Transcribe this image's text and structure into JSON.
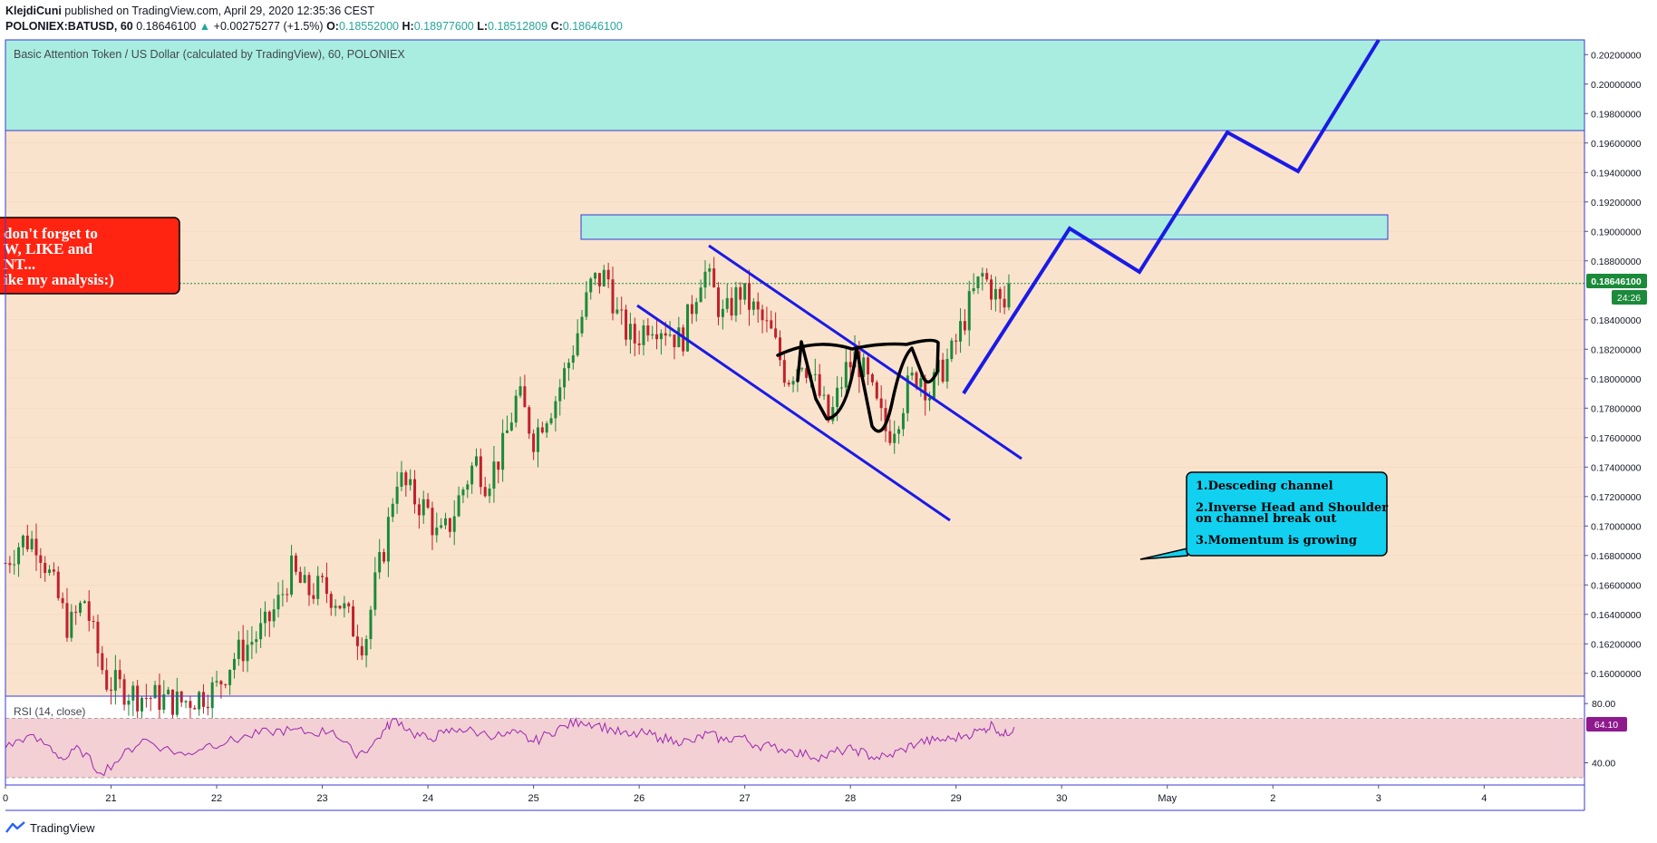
{
  "header": {
    "author": "KlejdiCuni",
    "published_text": "published on TradingView.com, April 29, 2020 12:35:36 CEST",
    "symbol": "POLONIEX:BATUSD, 60",
    "last": "0.18646100",
    "change_arrow": "▲",
    "change": "+0.00275277 (+1.5%)",
    "o_label": "O:",
    "o": "0.18552000",
    "h_label": "H:",
    "h": "0.18977600",
    "l_label": "L:",
    "l": "0.18512809",
    "c_label": "C:",
    "c": "0.18646100"
  },
  "footer": {
    "brand": "TradingView",
    "logo_icon": "tradingview-logo-icon"
  },
  "colors": {
    "chart_bg": "#fae3cc",
    "zone": "#a8ede0",
    "zone_border": "#3a3ad8",
    "up": "#1b8a3a",
    "down": "#c0212c",
    "drawing": "#1a1ae6",
    "rsi_line": "#9c27b0",
    "rsi_band": "#f2d0d4",
    "price_badge": "#1b8a3a",
    "rsi_badge": "#8e1a8e",
    "callout_red": "#ff2412",
    "callout_cyan": "#12d0f0"
  },
  "chart_data": [
    {
      "type": "candlestick",
      "title": "Basic Attention Token / US Dollar (calculated by TradingView), 60, POLONIEX",
      "x_labels": [
        "0",
        "21",
        "22",
        "23",
        "24",
        "25",
        "26",
        "27",
        "28",
        "29",
        "30",
        "May",
        "2",
        "3",
        "4"
      ],
      "y_ticks": [
        "0.16000000",
        "0.16200000",
        "0.16400000",
        "0.16600000",
        "0.16800000",
        "0.17000000",
        "0.17200000",
        "0.17400000",
        "0.17600000",
        "0.17800000",
        "0.18000000",
        "0.18200000",
        "0.18400000",
        "0.18800000",
        "0.19000000",
        "0.19200000",
        "0.19400000",
        "0.19600000",
        "0.19800000",
        "0.20000000",
        "0.20200000"
      ],
      "y_tick_values": [
        0.16,
        0.162,
        0.164,
        0.166,
        0.168,
        0.17,
        0.172,
        0.174,
        0.176,
        0.178,
        0.18,
        0.182,
        0.184,
        0.188,
        0.19,
        0.192,
        0.194,
        0.196,
        0.198,
        0.2,
        0.202
      ],
      "ylim": [
        0.15845,
        0.203
      ],
      "xlim": [
        20.0,
        34.95
      ],
      "last_price": 0.186461,
      "last_price_label": "0.18646100",
      "countdown_label": "24:26",
      "close_path": [
        [
          20.0,
          0.1675
        ],
        [
          20.15,
          0.169
        ],
        [
          20.3,
          0.169
        ],
        [
          20.45,
          0.166
        ],
        [
          20.6,
          0.163
        ],
        [
          20.75,
          0.165
        ],
        [
          20.85,
          0.162
        ],
        [
          20.95,
          0.1595
        ],
        [
          21.1,
          0.159
        ],
        [
          21.25,
          0.1585
        ],
        [
          21.45,
          0.1583
        ],
        [
          21.65,
          0.158
        ],
        [
          21.85,
          0.1585
        ],
        [
          22.0,
          0.159
        ],
        [
          22.15,
          0.161
        ],
        [
          22.3,
          0.162
        ],
        [
          22.45,
          0.163
        ],
        [
          22.6,
          0.165
        ],
        [
          22.7,
          0.167
        ],
        [
          22.85,
          0.1655
        ],
        [
          23.0,
          0.1658
        ],
        [
          23.15,
          0.165
        ],
        [
          23.3,
          0.163
        ],
        [
          23.4,
          0.162
        ],
        [
          23.5,
          0.166
        ],
        [
          23.6,
          0.169
        ],
        [
          23.7,
          0.1735
        ],
        [
          23.85,
          0.172
        ],
        [
          24.0,
          0.171
        ],
        [
          24.1,
          0.169
        ],
        [
          24.2,
          0.17
        ],
        [
          24.3,
          0.172
        ],
        [
          24.45,
          0.1745
        ],
        [
          24.55,
          0.173
        ],
        [
          24.7,
          0.175
        ],
        [
          24.85,
          0.179
        ],
        [
          25.0,
          0.176
        ],
        [
          25.1,
          0.1775
        ],
        [
          25.2,
          0.1785
        ],
        [
          25.35,
          0.1815
        ],
        [
          25.45,
          0.184
        ],
        [
          25.55,
          0.1865
        ],
        [
          25.7,
          0.187
        ],
        [
          25.8,
          0.184
        ],
        [
          25.95,
          0.1825
        ],
        [
          26.1,
          0.184
        ],
        [
          26.25,
          0.1835
        ],
        [
          26.4,
          0.1825
        ],
        [
          26.5,
          0.185
        ],
        [
          26.6,
          0.1875
        ],
        [
          26.7,
          0.186
        ],
        [
          26.8,
          0.184
        ],
        [
          26.95,
          0.186
        ],
        [
          27.1,
          0.1845
        ],
        [
          27.25,
          0.183
        ],
        [
          27.4,
          0.18
        ],
        [
          27.55,
          0.1815
        ],
        [
          27.7,
          0.179
        ],
        [
          27.8,
          0.177
        ],
        [
          27.95,
          0.1805
        ],
        [
          28.05,
          0.1815
        ],
        [
          28.15,
          0.18
        ],
        [
          28.25,
          0.178
        ],
        [
          28.35,
          0.1762
        ],
        [
          28.45,
          0.1775
        ],
        [
          28.55,
          0.1795
        ],
        [
          28.65,
          0.1805
        ],
        [
          28.75,
          0.179
        ],
        [
          28.85,
          0.1805
        ],
        [
          28.95,
          0.1815
        ],
        [
          29.05,
          0.1835
        ],
        [
          29.15,
          0.1855
        ],
        [
          29.25,
          0.187
        ],
        [
          29.35,
          0.186
        ],
        [
          29.45,
          0.1845
        ],
        [
          29.5,
          0.18646
        ]
      ]
    },
    {
      "type": "line",
      "title": "RSI (14, close)",
      "y_ticks": [
        "80.00",
        "40.00"
      ],
      "ylim": [
        25,
        85
      ],
      "band": [
        30,
        70
      ],
      "last_value": 64.1,
      "last_value_label": "64.10",
      "series": [
        [
          20.0,
          50
        ],
        [
          20.2,
          58
        ],
        [
          20.4,
          52
        ],
        [
          20.55,
          42
        ],
        [
          20.7,
          50
        ],
        [
          20.9,
          33
        ],
        [
          21.1,
          44
        ],
        [
          21.3,
          56
        ],
        [
          21.5,
          50
        ],
        [
          21.7,
          45
        ],
        [
          21.9,
          52
        ],
        [
          22.1,
          54
        ],
        [
          22.3,
          58
        ],
        [
          22.5,
          61
        ],
        [
          22.7,
          62
        ],
        [
          22.9,
          60
        ],
        [
          23.1,
          62
        ],
        [
          23.3,
          46
        ],
        [
          23.45,
          50
        ],
        [
          23.6,
          63
        ],
        [
          23.7,
          70
        ],
        [
          23.85,
          60
        ],
        [
          24.0,
          56
        ],
        [
          24.15,
          60
        ],
        [
          24.3,
          63
        ],
        [
          24.5,
          60
        ],
        [
          24.7,
          58
        ],
        [
          24.85,
          60
        ],
        [
          25.0,
          54
        ],
        [
          25.15,
          60
        ],
        [
          25.3,
          65
        ],
        [
          25.45,
          68
        ],
        [
          25.6,
          66
        ],
        [
          25.75,
          62
        ],
        [
          25.9,
          58
        ],
        [
          26.05,
          60
        ],
        [
          26.2,
          57
        ],
        [
          26.35,
          55
        ],
        [
          26.5,
          54
        ],
        [
          26.65,
          60
        ],
        [
          26.8,
          55
        ],
        [
          26.95,
          58
        ],
        [
          27.1,
          52
        ],
        [
          27.25,
          51
        ],
        [
          27.45,
          48
        ],
        [
          27.6,
          45
        ],
        [
          27.75,
          44
        ],
        [
          27.9,
          48
        ],
        [
          28.05,
          49
        ],
        [
          28.2,
          44
        ],
        [
          28.35,
          44
        ],
        [
          28.5,
          49
        ],
        [
          28.65,
          54
        ],
        [
          28.8,
          55
        ],
        [
          28.95,
          56
        ],
        [
          29.1,
          59
        ],
        [
          29.25,
          62
        ],
        [
          29.35,
          66
        ],
        [
          29.45,
          58
        ],
        [
          29.55,
          64.1
        ]
      ]
    }
  ],
  "annotations": {
    "callout_red": {
      "lines": [
        "don't forget  to",
        "W, LIKE and",
        "NT...",
        "ike my analysis:)"
      ]
    },
    "callout_cyan": {
      "lines": [
        "1.Desceding channel",
        "2.Inverse Head and Shoulder",
        "on channel break out",
        "3.Momentum is growing"
      ]
    }
  }
}
